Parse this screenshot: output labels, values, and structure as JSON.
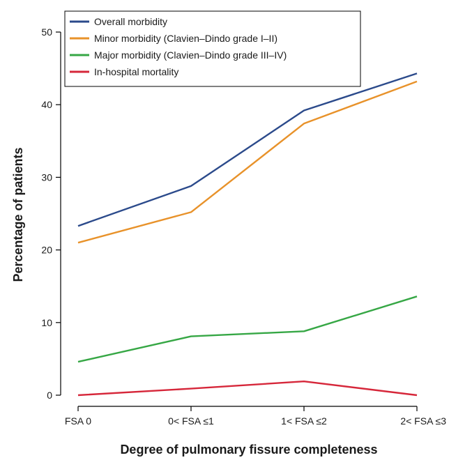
{
  "chart_data": {
    "type": "line",
    "title": "",
    "xlabel": "Degree of pulmonary fissure completeness",
    "ylabel": "Percentage of patients",
    "categories": [
      "FSA 0",
      "0< FSA ≤1",
      "1< FSA ≤2",
      "2< FSA ≤3"
    ],
    "ylim": [
      0,
      50
    ],
    "yticks": [
      0,
      10,
      20,
      30,
      40,
      50
    ],
    "grid": false,
    "legend_position": "top-left",
    "series": [
      {
        "name": "Overall morbidity",
        "color": "#2b4a8b",
        "values": [
          23.3,
          28.8,
          39.2,
          44.3
        ]
      },
      {
        "name": "Minor morbidity (Clavien–Dindo grade I–II)",
        "color": "#e8922a",
        "values": [
          21.0,
          25.2,
          37.4,
          43.2
        ]
      },
      {
        "name": "Major morbidity (Clavien–Dindo grade III–IV)",
        "color": "#36a745",
        "values": [
          4.6,
          8.1,
          8.8,
          13.6
        ]
      },
      {
        "name": "In-hospital mortality",
        "color": "#d6273a",
        "values": [
          0.0,
          0.9,
          1.9,
          0.0
        ]
      }
    ]
  }
}
